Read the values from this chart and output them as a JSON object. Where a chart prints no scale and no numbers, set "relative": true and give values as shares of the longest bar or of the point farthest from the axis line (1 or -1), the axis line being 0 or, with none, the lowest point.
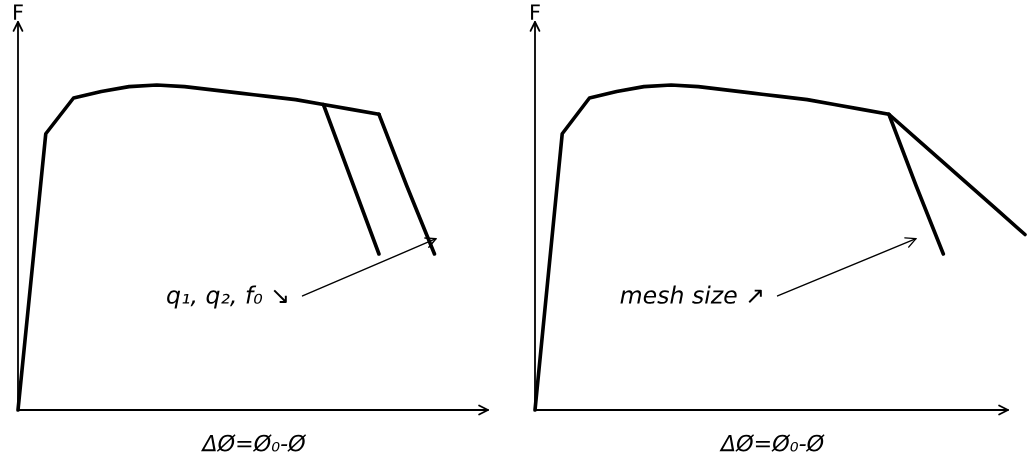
{
  "chart_data": [
    {
      "type": "line",
      "relative": true,
      "ylabel": "F",
      "xlabel": "ΔØ=Ø₀-Ø",
      "legend": false,
      "marker": "none",
      "line_style": "solid",
      "annotations": [
        "q₁, q₂, f₀ ↘"
      ],
      "categories": [
        null,
        null,
        null,
        null,
        null,
        null,
        null,
        null,
        null,
        null,
        null,
        null,
        null,
        null,
        null,
        null,
        null,
        null
      ],
      "series": [
        {
          "color": "#000000",
          "values": [
            0,
            0.85,
            0.96,
            0.98,
            0.995,
            1.0,
            0.995,
            0.985,
            0.975,
            0.965,
            0.955,
            0.94,
            0.925,
            0.91,
            null,
            null,
            null,
            null
          ]
        },
        {
          "color": "#000000",
          "values": [
            null,
            null,
            null,
            null,
            null,
            null,
            null,
            null,
            null,
            null,
            null,
            0.94,
            0.71,
            0.48,
            null,
            null,
            null,
            null
          ]
        },
        {
          "color": "#000000",
          "values": [
            null,
            null,
            null,
            null,
            null,
            null,
            null,
            null,
            null,
            null,
            null,
            null,
            null,
            0.91,
            0.69,
            0.48,
            null,
            null
          ]
        }
      ]
    },
    {
      "type": "line",
      "relative": true,
      "ylabel": "F",
      "xlabel": "ΔØ=Ø₀-Ø",
      "legend": false,
      "marker": "none",
      "line_style": "solid",
      "annotations": [
        "mesh size ↗"
      ],
      "categories": [
        null,
        null,
        null,
        null,
        null,
        null,
        null,
        null,
        null,
        null,
        null,
        null,
        null,
        null,
        null,
        null,
        null,
        null,
        null
      ],
      "series": [
        {
          "color": "#000000",
          "values": [
            0,
            0.85,
            0.96,
            0.98,
            0.995,
            1.0,
            0.995,
            0.985,
            0.975,
            0.965,
            0.955,
            0.94,
            0.925,
            0.91,
            0.836,
            0.762,
            0.688,
            0.614,
            0.54
          ]
        },
        {
          "color": "#000000",
          "values": [
            null,
            null,
            null,
            null,
            null,
            null,
            null,
            null,
            null,
            null,
            null,
            null,
            null,
            0.91,
            0.69,
            0.48,
            null,
            null,
            null
          ]
        }
      ]
    }
  ]
}
